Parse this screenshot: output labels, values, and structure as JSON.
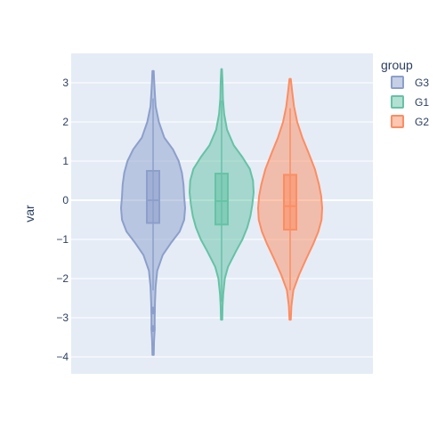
{
  "chart_data": {
    "type": "violin",
    "title": "",
    "xlabel": "",
    "ylabel": "var",
    "ylim": [
      -4.4,
      3.75
    ],
    "yticks": [
      -4,
      -3,
      -2,
      -1,
      0,
      1,
      2,
      3
    ],
    "ytick_labels": [
      "−4",
      "−3",
      "−2",
      "−1",
      "0",
      "1",
      "2",
      "3"
    ],
    "grid": true,
    "legend": {
      "title": "group",
      "placement": "top-right"
    },
    "series": [
      {
        "name": "G3",
        "color": "#8c9fcb",
        "min": -3.95,
        "max": 3.3,
        "q1": -0.58,
        "median": 0.0,
        "q3": 0.75,
        "whisker_low": -2.3,
        "whisker_high": 2.6,
        "outliers": [
          -2.78,
          -2.85,
          -3.25,
          -3.3
        ],
        "density": [
          [
            -3.95,
            0.02
          ],
          [
            -3.6,
            0.03
          ],
          [
            -3.3,
            0.05
          ],
          [
            -3.0,
            0.05
          ],
          [
            -2.6,
            0.06
          ],
          [
            -2.2,
            0.08
          ],
          [
            -1.8,
            0.13
          ],
          [
            -1.4,
            0.3
          ],
          [
            -1.1,
            0.55
          ],
          [
            -0.8,
            0.83
          ],
          [
            -0.5,
            0.97
          ],
          [
            -0.2,
            1.0
          ],
          [
            0.1,
            0.97
          ],
          [
            0.4,
            0.95
          ],
          [
            0.7,
            0.9
          ],
          [
            1.0,
            0.8
          ],
          [
            1.3,
            0.62
          ],
          [
            1.6,
            0.35
          ],
          [
            2.0,
            0.18
          ],
          [
            2.4,
            0.08
          ],
          [
            2.8,
            0.05
          ],
          [
            3.1,
            0.03
          ],
          [
            3.3,
            0.02
          ]
        ]
      },
      {
        "name": "G1",
        "color": "#66c2a5",
        "min": -3.05,
        "max": 3.35,
        "q1": -0.62,
        "median": -0.02,
        "q3": 0.68,
        "whisker_low": -2.6,
        "whisker_high": 2.55,
        "outliers": [],
        "density": [
          [
            -3.05,
            0.02
          ],
          [
            -2.7,
            0.03
          ],
          [
            -2.4,
            0.05
          ],
          [
            -2.0,
            0.1
          ],
          [
            -1.7,
            0.2
          ],
          [
            -1.3,
            0.45
          ],
          [
            -1.0,
            0.65
          ],
          [
            -0.7,
            0.8
          ],
          [
            -0.4,
            0.9
          ],
          [
            -0.1,
            0.96
          ],
          [
            0.2,
            1.0
          ],
          [
            0.5,
            0.98
          ],
          [
            0.8,
            0.88
          ],
          [
            1.1,
            0.65
          ],
          [
            1.4,
            0.38
          ],
          [
            1.8,
            0.17
          ],
          [
            2.2,
            0.08
          ],
          [
            2.6,
            0.04
          ],
          [
            3.0,
            0.03
          ],
          [
            3.35,
            0.01
          ]
        ]
      },
      {
        "name": "G2",
        "color": "#fc8d62",
        "min": -3.05,
        "max": 3.1,
        "q1": -0.75,
        "median": -0.15,
        "q3": 0.65,
        "whisker_low": -2.3,
        "whisker_high": 2.35,
        "outliers": [],
        "density": [
          [
            -3.05,
            0.02
          ],
          [
            -2.7,
            0.04
          ],
          [
            -2.3,
            0.1
          ],
          [
            -1.9,
            0.28
          ],
          [
            -1.5,
            0.5
          ],
          [
            -1.1,
            0.73
          ],
          [
            -0.8,
            0.88
          ],
          [
            -0.5,
            0.98
          ],
          [
            -0.2,
            1.0
          ],
          [
            0.1,
            0.97
          ],
          [
            0.4,
            0.9
          ],
          [
            0.8,
            0.77
          ],
          [
            1.2,
            0.58
          ],
          [
            1.6,
            0.38
          ],
          [
            2.0,
            0.22
          ],
          [
            2.4,
            0.12
          ],
          [
            2.8,
            0.06
          ],
          [
            3.1,
            0.02
          ]
        ]
      }
    ]
  }
}
